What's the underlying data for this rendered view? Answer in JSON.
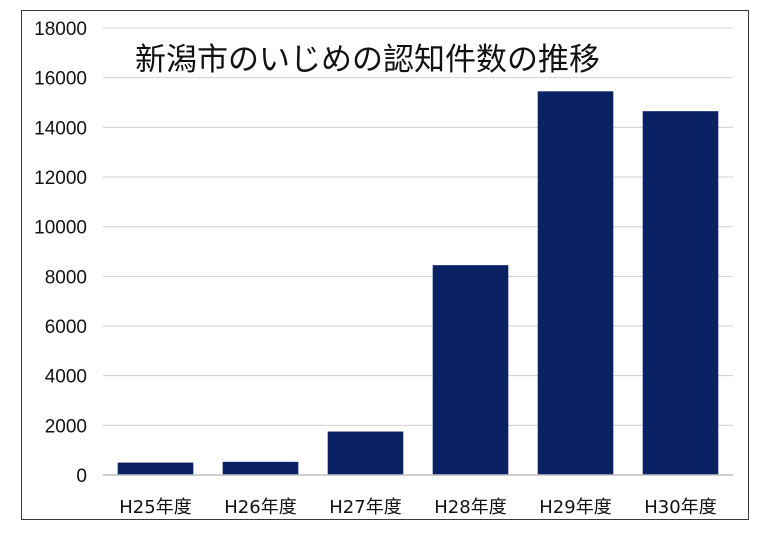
{
  "chart_data": {
    "type": "bar",
    "title": "新潟市のいじめの認知件数の推移",
    "xlabel": "",
    "ylabel": "",
    "categories": [
      "H25年度",
      "H26年度",
      "H27年度",
      "H28年度",
      "H29年度",
      "H30年度"
    ],
    "values": [
      500,
      530,
      1750,
      8450,
      15450,
      14650
    ],
    "ylim": [
      0,
      18000
    ],
    "yticks": [
      0,
      2000,
      4000,
      6000,
      8000,
      10000,
      12000,
      14000,
      16000,
      18000
    ],
    "grid": true,
    "legend": "none",
    "colors": {
      "bar": "#0a2163",
      "grid": "#d0d0d0",
      "axis": "#bfbfbf"
    }
  }
}
